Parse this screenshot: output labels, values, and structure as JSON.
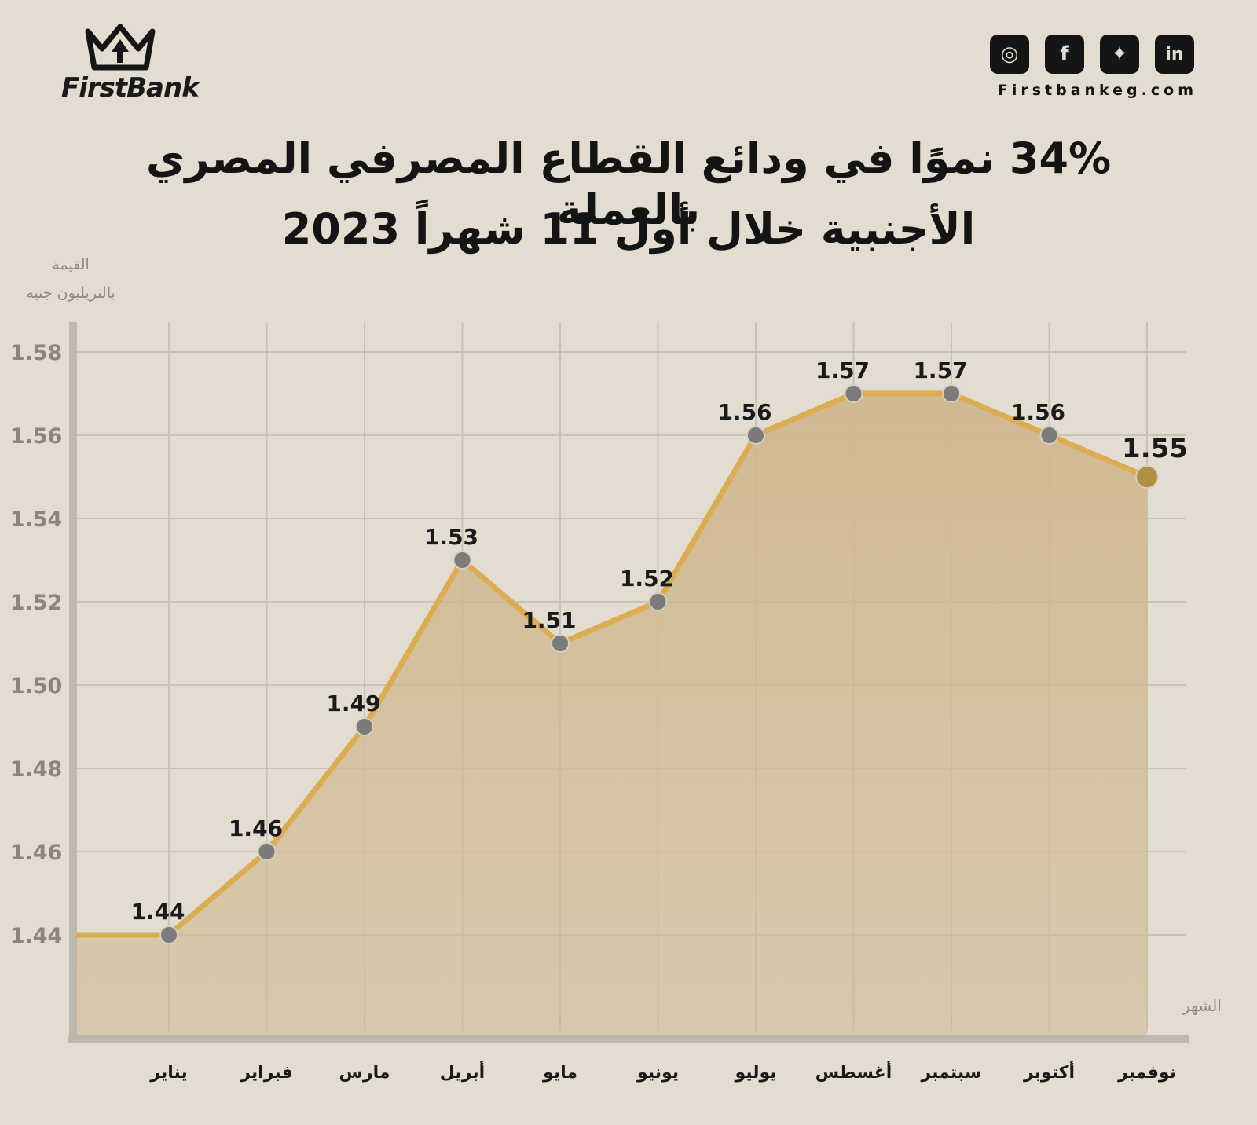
{
  "brand": {
    "name": "FirstBank",
    "website": "Firstbankeg.com",
    "social_icons": [
      "instagram-icon",
      "facebook-icon",
      "twitter-icon",
      "linkedin-icon"
    ]
  },
  "title": {
    "line1": "34% نموًا في ودائع القطاع المصرفي المصري بالعملة",
    "line2": "الأجنبية خلال أول 11 شهراً 2023"
  },
  "chart_data": {
    "type": "area",
    "title": "34% نموًا في ودائع القطاع المصرفي المصري بالعملة الأجنبية خلال أول 11 شهراً 2023",
    "ylabel": "القيمة",
    "ylabel_unit": "بالتريليون جنيه",
    "xlabel": "الشهر",
    "categories": [
      "يناير",
      "فبراير",
      "مارس",
      "أبريل",
      "مايو",
      "يونيو",
      "يوليو",
      "أغسطس",
      "سبتمبر",
      "أكتوبر",
      "نوفمبر"
    ],
    "values": [
      1.44,
      1.46,
      1.49,
      1.53,
      1.51,
      1.52,
      1.56,
      1.57,
      1.57,
      1.56,
      1.55
    ],
    "data_labels": [
      "1.44",
      "1.46",
      "1.49",
      "1.53",
      "1.51",
      "1.52",
      "1.56",
      "1.57",
      "1.57",
      "1.56",
      "1.55"
    ],
    "yticks": [
      "1.44",
      "1.46",
      "1.48",
      "1.50",
      "1.52",
      "1.54",
      "1.56",
      "1.58"
    ],
    "ylim": [
      1.42,
      1.59
    ],
    "grid": true,
    "colors": {
      "line": "#dbac52",
      "fill": "#d0b88f",
      "marker": "#7b7b7b",
      "last_marker": "#b08e45",
      "grid": "#c8c3b8",
      "axis": "#bdb8ad"
    }
  }
}
